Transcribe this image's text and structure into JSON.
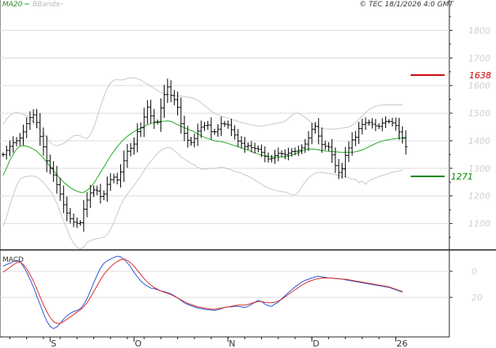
{
  "legend": {
    "ma_label": "MA20",
    "bb_label": "BBands"
  },
  "copyright": "© TEC 18/1/2026 4:0 GMT",
  "colors": {
    "ma": "#22aa22",
    "bands": "#c8c8c8",
    "price": "#000000",
    "macd": "#2b57d9",
    "signal": "#d92b2b",
    "ref_red": "#cc0000",
    "ref_green": "#008800",
    "grid": "#dcdcdc",
    "frame": "#222222"
  },
  "chart_data": [
    {
      "type": "candlestick",
      "title": "",
      "y_ticks": [
        1100,
        1200,
        1300,
        1400,
        1500,
        1600,
        1700,
        1800
      ],
      "ylim": [
        1010,
        1870
      ],
      "x_ticks": [
        "S",
        "O",
        "N",
        "D",
        "26"
      ],
      "x_tick_index": [
        14,
        39,
        67,
        92,
        117
      ],
      "reference_lines": [
        {
          "value": 1638,
          "label": "1638",
          "color": "red"
        },
        {
          "value": 1271,
          "label": "1271",
          "color": "green"
        }
      ],
      "series": [
        {
          "name": "MA20",
          "values": [
            1275,
            1300,
            1330,
            1350,
            1370,
            1380,
            1382,
            1380,
            1376,
            1370,
            1362,
            1350,
            1337,
            1322,
            1307,
            1292,
            1277,
            1263,
            1250,
            1240,
            1230,
            1223,
            1217,
            1213,
            1213,
            1220,
            1230,
            1245,
            1265,
            1285,
            1305,
            1325,
            1345,
            1362,
            1378,
            1393,
            1405,
            1416,
            1425,
            1433,
            1440,
            1446,
            1452,
            1458,
            1462,
            1465,
            1468,
            1470,
            1471,
            1472,
            1470,
            1464,
            1458,
            1452,
            1447,
            1442,
            1437,
            1432,
            1425,
            1418,
            1412,
            1408,
            1404,
            1400,
            1398,
            1397,
            1394,
            1390,
            1386,
            1382,
            1378,
            1374,
            1370,
            1366,
            1361,
            1356,
            1352,
            1348,
            1345,
            1343,
            1342,
            1341,
            1341,
            1341,
            1342,
            1345,
            1348,
            1352,
            1357,
            1363,
            1368,
            1370,
            1370,
            1369,
            1367,
            1365,
            1363,
            1362,
            1361,
            1360,
            1359,
            1358,
            1358,
            1358,
            1358,
            1360,
            1363,
            1367,
            1372,
            1378,
            1384,
            1390,
            1395,
            1399,
            1402,
            1404,
            1406,
            1408,
            1409,
            1410,
            1412
          ]
        },
        {
          "name": "BBands",
          "values": [
            1460,
            1478,
            1492,
            1500,
            1502,
            1500,
            1496,
            1490,
            1480,
            1468,
            1455,
            1440,
            1425,
            1410,
            1395,
            1385,
            1382,
            1385,
            1390,
            1398,
            1410,
            1418,
            1420,
            1418,
            1412,
            1408,
            1422,
            1448,
            1485,
            1522,
            1560,
            1590,
            1610,
            1620,
            1622,
            1620,
            1622,
            1625,
            1628,
            1628,
            1625,
            1620,
            1612,
            1605,
            1598,
            1590,
            1582,
            1575,
            1570,
            1568,
            1566,
            1564,
            1562,
            1562,
            1560,
            1558,
            1556,
            1552,
            1546,
            1538,
            1528,
            1518,
            1508,
            1500,
            1494,
            1490,
            1486,
            1482,
            1478,
            1474,
            1470,
            1466,
            1464,
            1460,
            1457,
            1455,
            1454,
            1454,
            1455,
            1457,
            1460,
            1462,
            1464,
            1466,
            1470,
            1480,
            1492,
            1500,
            1500,
            1493,
            1485,
            1475,
            1465,
            1455,
            1448,
            1445,
            1443,
            1442,
            1442,
            1443,
            1444,
            1446,
            1448,
            1450,
            1456,
            1465,
            1478,
            1490,
            1502,
            1512,
            1520,
            1525,
            1528,
            1530,
            1530,
            1530,
            1530,
            1530,
            1530,
            1530
          ]
        },
        {
          "name": "BBands",
          "values": [
            1090,
            1122,
            1168,
            1200,
            1238,
            1260,
            1268,
            1270,
            1272,
            1272,
            1269,
            1260,
            1249,
            1234,
            1219,
            1199,
            1172,
            1141,
            1110,
            1082,
            1050,
            1028,
            1014,
            1008,
            1014,
            1032,
            1038,
            1042,
            1045,
            1048,
            1050,
            1060,
            1080,
            1104,
            1134,
            1166,
            1188,
            1207,
            1222,
            1238,
            1255,
            1272,
            1292,
            1311,
            1326,
            1340,
            1354,
            1365,
            1372,
            1376,
            1374,
            1364,
            1354,
            1342,
            1334,
            1326,
            1318,
            1312,
            1304,
            1298,
            1296,
            1298,
            1300,
            1300,
            1302,
            1304,
            1302,
            1298,
            1294,
            1290,
            1286,
            1282,
            1276,
            1272,
            1265,
            1257,
            1250,
            1242,
            1235,
            1229,
            1224,
            1220,
            1218,
            1216,
            1214,
            1210,
            1204,
            1204,
            1214,
            1233,
            1251,
            1265,
            1275,
            1283,
            1286,
            1285,
            1283,
            1282,
            1280,
            1277,
            1274,
            1270,
            1268,
            1266,
            1260,
            1261,
            1248,
            1254,
            1242,
            1256,
            1260,
            1265,
            1270,
            1274,
            1278,
            1282,
            1286,
            1288,
            1290,
            1294
          ]
        },
        {
          "name": "Price",
          "values": [
            1350,
            1365,
            1380,
            1393,
            1400,
            1410,
            1432,
            1462,
            1484,
            1494,
            1466,
            1416,
            1378,
            1327,
            1301,
            1276,
            1241,
            1207,
            1168,
            1138,
            1118,
            1105,
            1101,
            1103,
            1152,
            1185,
            1211,
            1222,
            1218,
            1198,
            1207,
            1242,
            1259,
            1268,
            1258,
            1287,
            1328,
            1362,
            1373,
            1388,
            1433,
            1447,
            1486,
            1522,
            1490,
            1468,
            1467,
            1519,
            1567,
            1595,
            1564,
            1549,
            1521,
            1462,
            1427,
            1402,
            1394,
            1408,
            1435,
            1449,
            1455,
            1457,
            1433,
            1432,
            1442,
            1462,
            1460,
            1457,
            1440,
            1421,
            1399,
            1391,
            1379,
            1382,
            1375,
            1372,
            1369,
            1358,
            1344,
            1334,
            1336,
            1347,
            1354,
            1353,
            1349,
            1355,
            1361,
            1362,
            1365,
            1374,
            1388,
            1410,
            1442,
            1452,
            1417,
            1387,
            1380,
            1377,
            1349,
            1310,
            1285,
            1298,
            1347,
            1374,
            1403,
            1413,
            1444,
            1459,
            1465,
            1466,
            1460,
            1454,
            1452,
            1464,
            1470,
            1470,
            1465,
            1455,
            1432,
            1410,
            1378
          ]
        }
      ]
    },
    {
      "type": "line",
      "title": "MACD",
      "y_ticks": [
        "0",
        "20"
      ],
      "ylim": [
        -90,
        55
      ],
      "series": [
        {
          "name": "MACD",
          "values": [
            30,
            33,
            35,
            38,
            40,
            38,
            30,
            20,
            8,
            -5,
            -20,
            -35,
            -50,
            -63,
            -72,
            -76,
            -73,
            -67,
            -60,
            -54,
            -50,
            -47,
            -45,
            -42,
            -35,
            -25,
            -12,
            2,
            15,
            27,
            35,
            39,
            42,
            45,
            47,
            46,
            42,
            36,
            29,
            20,
            12,
            5,
            0,
            -4,
            -7,
            -8,
            -10,
            -12,
            -13,
            -15,
            -17,
            -20,
            -24,
            -28,
            -32,
            -35,
            -37,
            -39,
            -41,
            -42,
            -43,
            -44,
            -44,
            -45,
            -44,
            -42,
            -40,
            -39,
            -39,
            -38,
            -38,
            -39,
            -40,
            -38,
            -35,
            -31,
            -28,
            -30,
            -34,
            -37,
            -38,
            -34,
            -31,
            -25,
            -20,
            -15,
            -10,
            -5,
            -1,
            3,
            6,
            8,
            10,
            12,
            13,
            12,
            11,
            10,
            10,
            9,
            9,
            8,
            7,
            6,
            5,
            4,
            3,
            2,
            1,
            0,
            -1,
            -2,
            -3,
            -4,
            -5,
            -6,
            -8,
            -10,
            -12,
            -14
          ]
        },
        {
          "name": "Signal",
          "values": [
            20,
            24,
            28,
            32,
            36,
            37,
            33,
            26,
            16,
            5,
            -8,
            -22,
            -35,
            -47,
            -57,
            -64,
            -67,
            -67,
            -64,
            -60,
            -56,
            -52,
            -48,
            -44,
            -39,
            -32,
            -23,
            -13,
            -3,
            7,
            16,
            23,
            29,
            34,
            38,
            41,
            42,
            40,
            36,
            30,
            23,
            16,
            9,
            3,
            -2,
            -6,
            -9,
            -12,
            -14,
            -16,
            -18,
            -21,
            -24,
            -27,
            -30,
            -33,
            -35,
            -37,
            -39,
            -40,
            -41,
            -42,
            -43,
            -43,
            -42,
            -41,
            -40,
            -39,
            -38,
            -37,
            -36,
            -36,
            -36,
            -35,
            -33,
            -31,
            -30,
            -30,
            -31,
            -32,
            -32,
            -31,
            -29,
            -26,
            -22,
            -18,
            -14,
            -10,
            -6,
            -2,
            1,
            4,
            6,
            8,
            9,
            10,
            10,
            10,
            10,
            9,
            9,
            8,
            8,
            7,
            6,
            5,
            4,
            3,
            2,
            1,
            0,
            -1,
            -2,
            -3,
            -4,
            -5,
            -7,
            -9,
            -11,
            -13
          ]
        }
      ]
    }
  ]
}
